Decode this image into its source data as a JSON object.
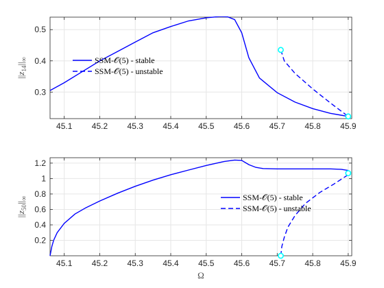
{
  "chart_data": [
    {
      "type": "line",
      "ylabel": "||z_14||∞",
      "ylabel_parts": {
        "open": "||",
        "var": "z",
        "sub": "14",
        "close": "||",
        "inf": "∞"
      },
      "xlim": [
        45.06,
        45.91
      ],
      "ylim": [
        0.215,
        0.54
      ],
      "xticks": [
        45.1,
        45.2,
        45.3,
        45.4,
        45.5,
        45.6,
        45.7,
        45.8,
        45.9
      ],
      "xtick_labels": [
        "45.1",
        "45.2",
        "45.3",
        "45.4",
        "45.5",
        "45.6",
        "45.7",
        "45.8",
        "45.9"
      ],
      "yticks": [
        0.3,
        0.4,
        0.5
      ],
      "ytick_labels": [
        "0.3",
        "0.4",
        "0.5"
      ],
      "grid": true,
      "legend": {
        "position": "middle-left",
        "entries": [
          "SSM-𝒪(5) - stable",
          "SSM-𝒪(5) - unstable"
        ]
      },
      "series": [
        {
          "name": "SSM-𝒪(5) - stable",
          "style": "solid",
          "color": "#0000ff",
          "x": [
            45.06,
            45.1,
            45.15,
            45.2,
            45.25,
            45.3,
            45.35,
            45.4,
            45.45,
            45.5,
            45.54,
            45.56,
            45.58,
            45.6,
            45.62,
            45.65,
            45.7,
            45.75,
            45.8,
            45.85,
            45.88,
            45.9
          ],
          "y": [
            0.305,
            0.33,
            0.365,
            0.4,
            0.43,
            0.46,
            0.49,
            0.51,
            0.528,
            0.538,
            0.542,
            0.541,
            0.532,
            0.49,
            0.41,
            0.345,
            0.298,
            0.268,
            0.247,
            0.232,
            0.226,
            0.222
          ]
        },
        {
          "name": "SSM-𝒪(5) - unstable",
          "style": "dashed",
          "color": "#0000ff",
          "x": [
            45.71,
            45.72,
            45.75,
            45.8,
            45.85,
            45.9
          ],
          "y": [
            0.435,
            0.4,
            0.36,
            0.31,
            0.265,
            0.222
          ]
        }
      ],
      "markers": [
        {
          "x": 45.71,
          "y": 0.435,
          "color": "#00ffff"
        },
        {
          "x": 45.9,
          "y": 0.222,
          "color": "#00ffff"
        }
      ]
    },
    {
      "type": "line",
      "xlabel": "Ω",
      "ylabel": "||z_50||∞",
      "ylabel_parts": {
        "open": "||",
        "var": "z",
        "sub": "50",
        "close": "||",
        "inf": "∞"
      },
      "xlim": [
        45.06,
        45.91
      ],
      "ylim": [
        0,
        1.27
      ],
      "xticks": [
        45.1,
        45.2,
        45.3,
        45.4,
        45.5,
        45.6,
        45.7,
        45.8,
        45.9
      ],
      "xtick_labels": [
        "45.1",
        "45.2",
        "45.3",
        "45.4",
        "45.5",
        "45.6",
        "45.7",
        "45.8",
        "45.9"
      ],
      "yticks": [
        0.2,
        0.4,
        0.6,
        0.8,
        1.0,
        1.2
      ],
      "ytick_labels": [
        "0.2",
        "0.4",
        "0.6",
        "0.8",
        "1",
        "1.2"
      ],
      "grid": true,
      "legend": {
        "position": "center-right",
        "entries": [
          "SSM-𝒪(5) - stable",
          "SSM-𝒪(5) - unstable"
        ]
      },
      "series": [
        {
          "name": "SSM-𝒪(5) - stable",
          "style": "solid",
          "color": "#0000ff",
          "x": [
            45.06,
            45.065,
            45.07,
            45.08,
            45.1,
            45.13,
            45.16,
            45.2,
            45.25,
            45.3,
            45.35,
            45.4,
            45.45,
            45.5,
            45.55,
            45.58,
            45.6,
            45.62,
            45.64,
            45.66,
            45.7,
            45.75,
            45.8,
            45.85,
            45.88,
            45.9
          ],
          "y": [
            0.0,
            0.12,
            0.2,
            0.3,
            0.42,
            0.54,
            0.62,
            0.71,
            0.81,
            0.9,
            0.98,
            1.05,
            1.11,
            1.17,
            1.22,
            1.24,
            1.235,
            1.18,
            1.145,
            1.13,
            1.125,
            1.125,
            1.125,
            1.125,
            1.12,
            1.105
          ]
        },
        {
          "name": "SSM-𝒪(5) - unstable",
          "style": "dashed",
          "color": "#0000ff",
          "x": [
            45.71,
            45.713,
            45.72,
            45.73,
            45.75,
            45.78,
            45.82,
            45.86,
            45.9
          ],
          "y": [
            0.0,
            0.12,
            0.24,
            0.37,
            0.52,
            0.68,
            0.82,
            0.93,
            1.05
          ]
        }
      ],
      "markers": [
        {
          "x": 45.71,
          "y": 0.0,
          "color": "#00ffff"
        },
        {
          "x": 45.9,
          "y": 1.07,
          "color": "#00ffff"
        }
      ]
    }
  ]
}
